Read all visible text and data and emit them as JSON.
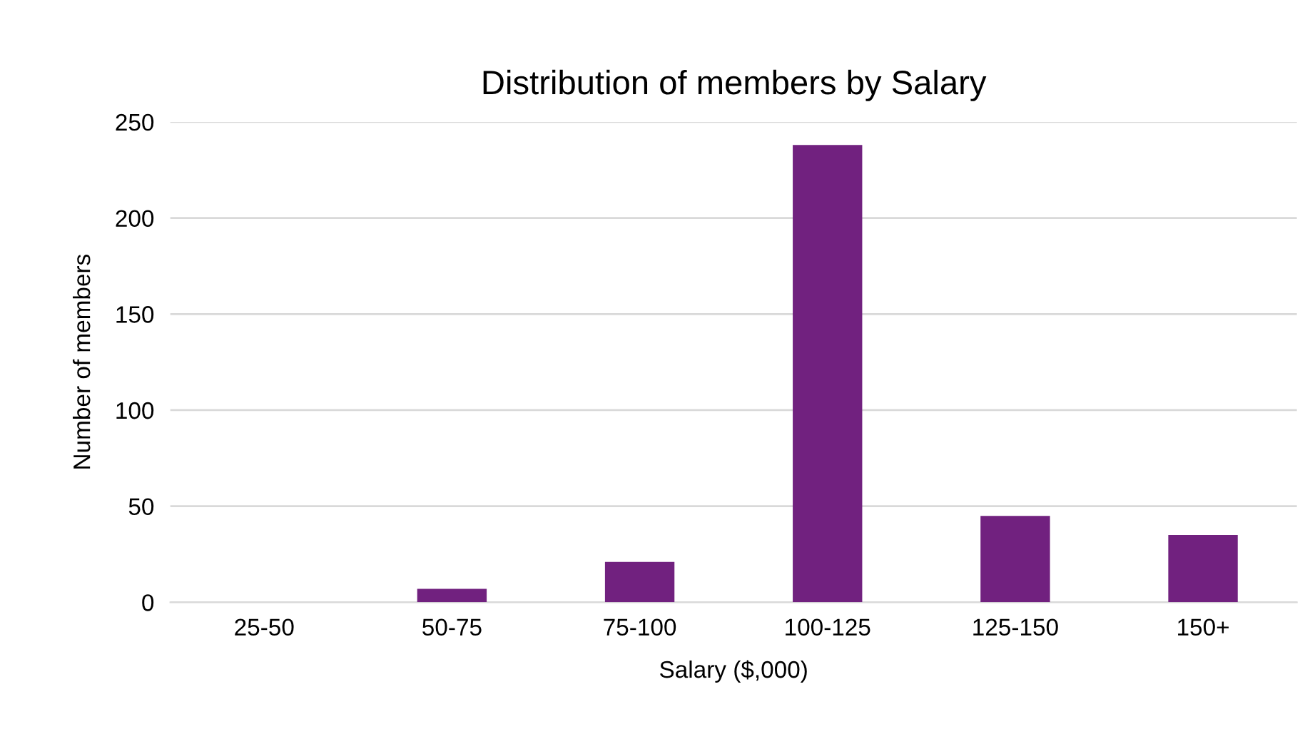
{
  "chart_data": {
    "type": "bar",
    "title": "Distribution of members by Salary",
    "xlabel": "Salary ($,000)",
    "ylabel": "Number of members",
    "categories": [
      "25-50",
      "50-75",
      "75-100",
      "100-125",
      "125-150",
      "150+"
    ],
    "values": [
      0,
      7,
      21,
      238,
      45,
      35
    ],
    "color": "#71217f",
    "ylim": [
      0,
      250
    ],
    "yticks": [
      0,
      50,
      100,
      150,
      200,
      250
    ],
    "grid": "y"
  }
}
